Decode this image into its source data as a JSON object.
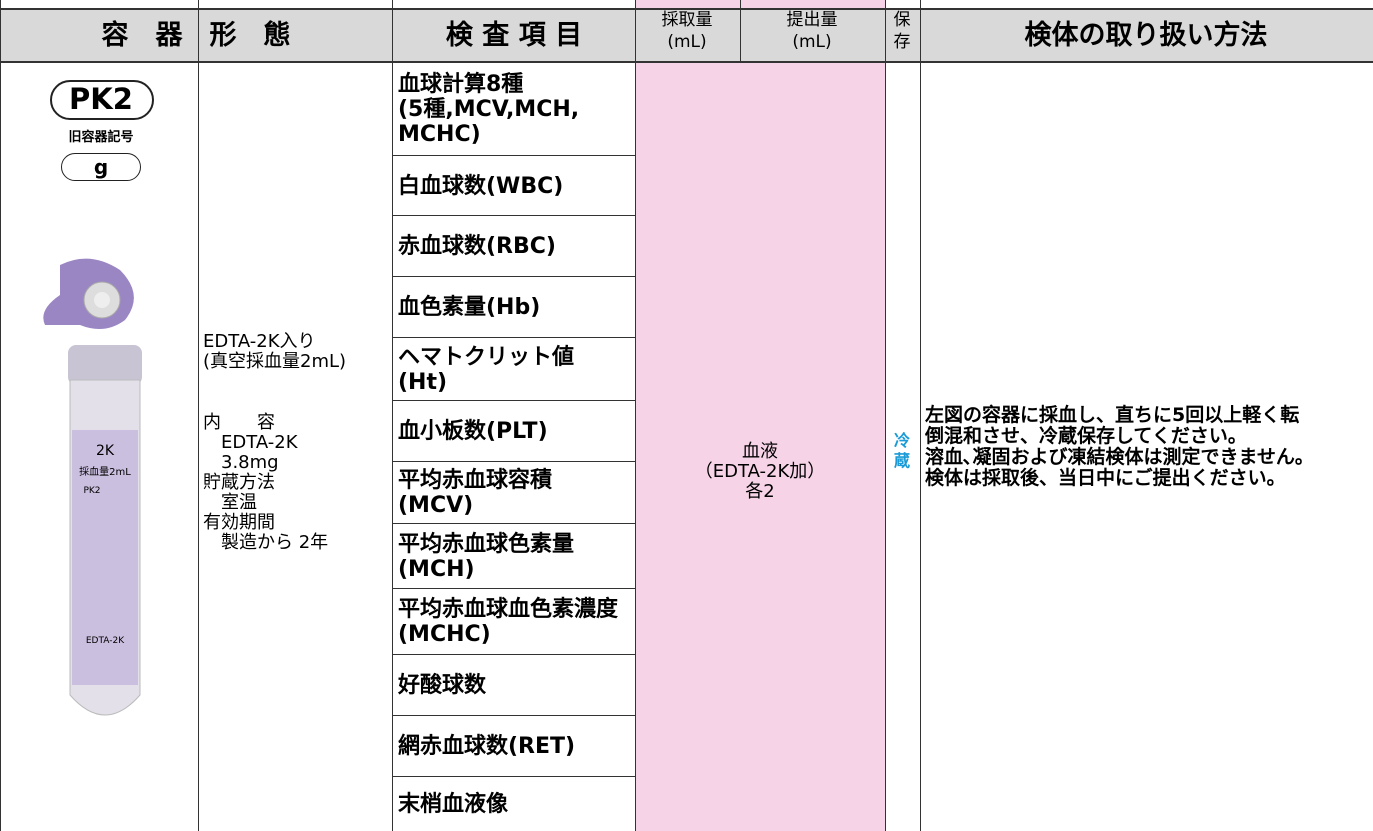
{
  "header": {
    "container": "容　器　形　態",
    "items": "検 査 項 目",
    "collect": [
      "採取量",
      "(mL)"
    ],
    "submit": [
      "提出量",
      "(mL)"
    ],
    "storage": [
      "保",
      "存"
    ],
    "handling": "検体の取り扱い方法"
  },
  "container": {
    "code": "PK2",
    "old_label": "旧容器記号",
    "old_code": "g",
    "tube_labels": [
      "2K",
      "採血量2mL",
      "PK2",
      "EDTA-2K"
    ],
    "description": [
      "EDTA-2K入り",
      "(真空採血量2mL)"
    ],
    "details": [
      "内　　容",
      "　EDTA-2K",
      "　3.8mg",
      "貯蔵方法",
      "　室温",
      "有効期間",
      "　製造から 2年"
    ]
  },
  "items": [
    [
      "血球計算8種",
      "(5種,MCV,MCH,",
      "MCHC)"
    ],
    [
      "白血球数(WBC)"
    ],
    [
      "赤血球数(RBC)"
    ],
    [
      "血色素量(Hb)"
    ],
    [
      "ヘマトクリット値",
      "(Ht)"
    ],
    [
      "血小板数(PLT)"
    ],
    [
      "平均赤血球容積",
      "(MCV)"
    ],
    [
      "平均赤血球色素量",
      "(MCH)"
    ],
    [
      "平均赤血球血色素濃度",
      "(MCHC)"
    ],
    [
      "好酸球数"
    ],
    [
      "網赤血球数(RET)"
    ],
    [
      "末梢血液像"
    ]
  ],
  "specimen": [
    "血液",
    "（EDTA-2K加）",
    "各2"
  ],
  "storage": [
    "冷",
    "蔵"
  ],
  "handling": [
    "左図の容器に採血し、直ちに5回以上軽く転",
    "倒混和させ、冷蔵保存してください。",
    "溶血､凝固および凍結検体は測定できません。",
    "検体は採取後、当日中にご提出ください。"
  ]
}
